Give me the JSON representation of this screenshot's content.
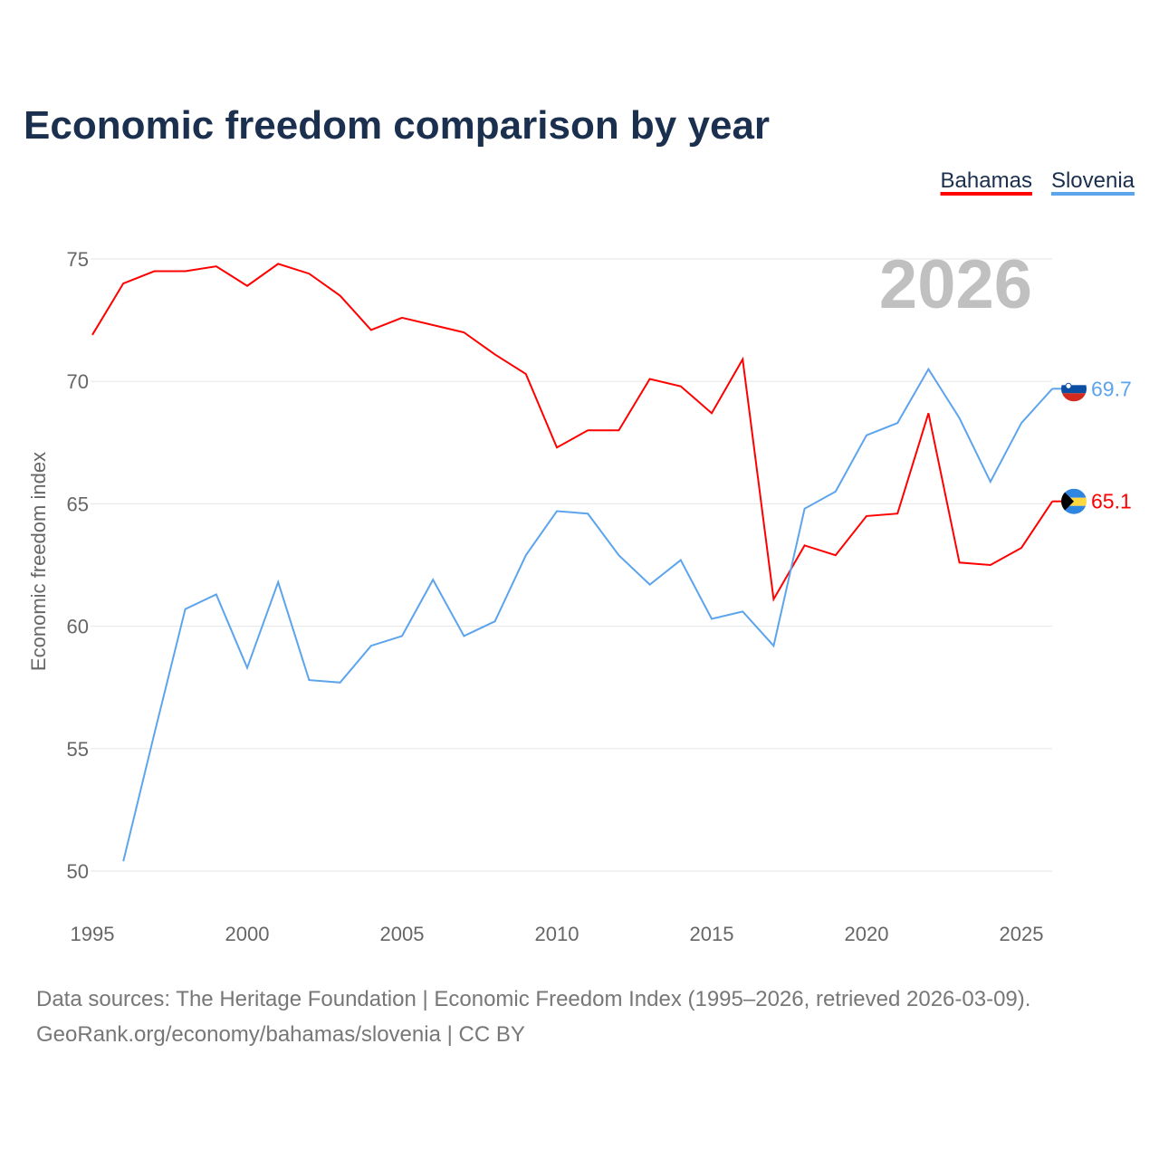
{
  "chart_data": {
    "type": "line",
    "title": "Economic freedom comparison by year",
    "xlabel": "",
    "ylabel": "Economic freedom index",
    "xlim": [
      1995,
      2026
    ],
    "ylim": [
      50,
      75
    ],
    "yticks": [
      50,
      55,
      60,
      65,
      70,
      75
    ],
    "xticks": [
      1995,
      2000,
      2005,
      2010,
      2015,
      2020,
      2025
    ],
    "grid": true,
    "legend_position": "top-right",
    "year_label": "2026",
    "series": [
      {
        "name": "Bahamas",
        "color": "#ff0000",
        "start": 1995,
        "end_label": "65.1",
        "values": [
          71.9,
          74.0,
          74.5,
          74.5,
          74.7,
          73.9,
          74.8,
          74.4,
          73.5,
          72.1,
          72.6,
          72.3,
          72.0,
          71.1,
          70.3,
          67.3,
          68.0,
          68.0,
          70.1,
          69.8,
          68.7,
          70.9,
          61.1,
          63.3,
          62.9,
          64.5,
          64.6,
          68.7,
          62.6,
          62.5,
          63.2,
          65.1
        ]
      },
      {
        "name": "Slovenia",
        "color": "#5ca4ec",
        "start": 1996,
        "end_label": "69.7",
        "values": [
          50.4,
          55.6,
          60.7,
          61.3,
          58.3,
          61.8,
          57.8,
          57.7,
          59.2,
          59.6,
          61.9,
          59.6,
          60.2,
          62.9,
          64.7,
          64.6,
          62.9,
          61.7,
          62.7,
          60.3,
          60.6,
          59.2,
          64.8,
          65.5,
          67.8,
          68.3,
          70.5,
          68.5,
          65.9,
          68.3,
          69.7
        ]
      }
    ]
  },
  "footer": {
    "line1": "Data sources: The Heritage Foundation | Economic Freedom Index (1995–2026, retrieved 2026-03-09).",
    "line2": "GeoRank.org/economy/bahamas/slovenia | CC BY"
  }
}
